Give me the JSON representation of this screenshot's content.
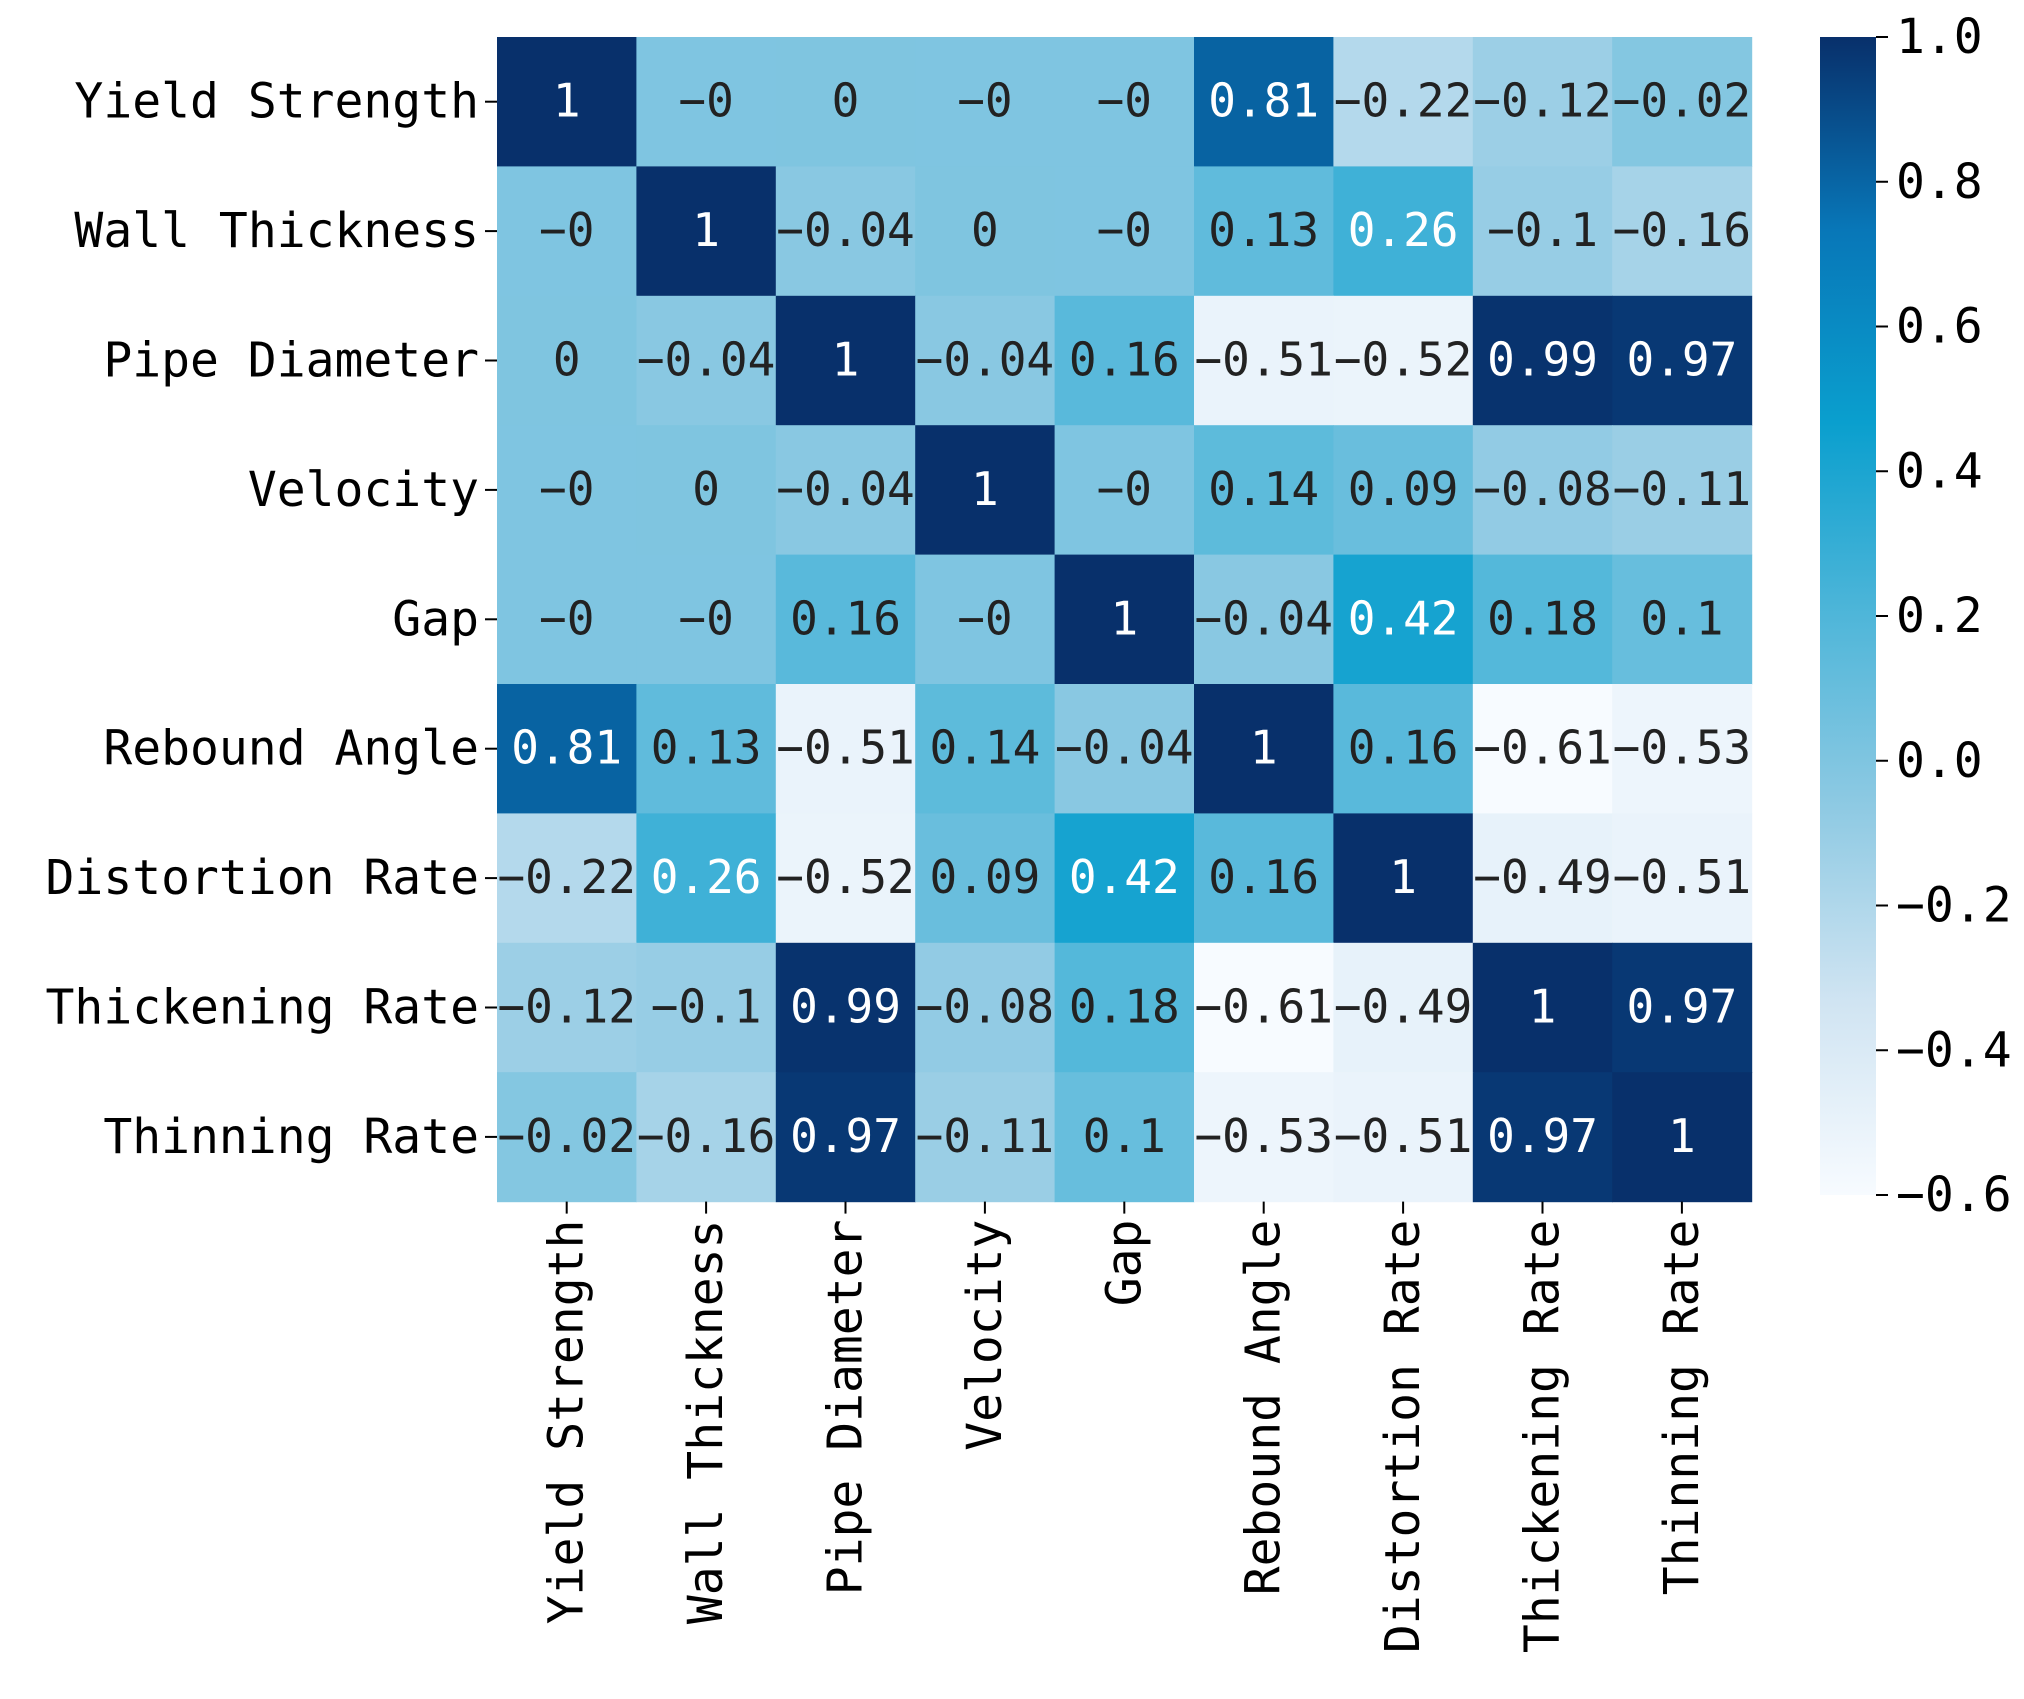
{
  "chart_data": {
    "type": "heatmap",
    "title": "",
    "xlabel": "",
    "ylabel": "",
    "row_labels": [
      "Yield Strength",
      "Wall Thickness",
      "Pipe Diameter",
      "Velocity",
      "Gap",
      "Rebound Angle",
      "Distortion Rate",
      "Thickening Rate",
      "Thinning Rate"
    ],
    "col_labels": [
      "Yield Strength",
      "Wall Thickness",
      "Pipe Diameter",
      "Velocity",
      "Gap",
      "Rebound Angle",
      "Distortion Rate",
      "Thickening Rate",
      "Thinning Rate"
    ],
    "values": [
      [
        1,
        -0.001,
        0.001,
        -0.001,
        -0.001,
        0.81,
        -0.22,
        -0.12,
        -0.02
      ],
      [
        -0.001,
        1,
        -0.04,
        0.001,
        -0.001,
        0.13,
        0.26,
        -0.1,
        -0.16
      ],
      [
        0.001,
        -0.04,
        1,
        -0.04,
        0.16,
        -0.51,
        -0.52,
        0.99,
        0.97
      ],
      [
        -0.001,
        0.001,
        -0.04,
        1,
        -0.001,
        0.14,
        0.09,
        -0.08,
        -0.11
      ],
      [
        -0.001,
        -0.001,
        0.16,
        -0.001,
        1,
        -0.04,
        0.42,
        0.18,
        0.1
      ],
      [
        0.81,
        0.13,
        -0.51,
        0.14,
        -0.04,
        1,
        0.16,
        -0.61,
        -0.53
      ],
      [
        -0.22,
        0.26,
        -0.52,
        0.09,
        0.42,
        0.16,
        1,
        -0.49,
        -0.51
      ],
      [
        -0.12,
        -0.1,
        0.99,
        -0.08,
        0.18,
        -0.61,
        -0.49,
        1,
        0.97
      ],
      [
        -0.02,
        -0.16,
        0.97,
        -0.11,
        0.1,
        -0.53,
        -0.51,
        0.97,
        1
      ]
    ],
    "annotations": [
      [
        "1",
        "−0",
        "0",
        "−0",
        "−0",
        "0.81",
        "−0.22",
        "−0.12",
        "−0.02"
      ],
      [
        "−0",
        "1",
        "−0.04",
        "0",
        "−0",
        "0.13",
        "0.26",
        "−0.1",
        "−0.16"
      ],
      [
        "0",
        "−0.04",
        "1",
        "−0.04",
        "0.16",
        "−0.51",
        "−0.52",
        "0.99",
        "0.97"
      ],
      [
        "−0",
        "0",
        "−0.04",
        "1",
        "−0",
        "0.14",
        "0.09",
        "−0.08",
        "−0.11"
      ],
      [
        "−0",
        "−0",
        "0.16",
        "−0",
        "1",
        "−0.04",
        "0.42",
        "0.18",
        "0.1"
      ],
      [
        "0.81",
        "0.13",
        "−0.51",
        "0.14",
        "−0.04",
        "1",
        "0.16",
        "−0.61",
        "−0.53"
      ],
      [
        "−0.22",
        "0.26",
        "−0.52",
        "0.09",
        "0.42",
        "0.16",
        "1",
        "−0.49",
        "−0.51"
      ],
      [
        "−0.12",
        "−0.1",
        "0.99",
        "−0.08",
        "0.18",
        "−0.61",
        "−0.49",
        "1",
        "0.97"
      ],
      [
        "−0.02",
        "−0.16",
        "0.97",
        "−0.11",
        "0.1",
        "−0.53",
        "−0.51",
        "0.97",
        "1"
      ]
    ],
    "colormap": "Blues",
    "colorbar": {
      "range": [
        -0.6,
        1.0
      ],
      "ticks": [
        1.0,
        0.8,
        0.6,
        0.4,
        0.2,
        0.0,
        -0.2,
        -0.4,
        -0.6
      ],
      "tick_labels": [
        "1.0",
        "0.8",
        "0.6",
        "0.4",
        "0.2",
        "0.0",
        "−0.2",
        "−0.4",
        "−0.6"
      ]
    },
    "colors": {
      "stops": [
        "#f7fbff",
        "#d0e4f2",
        "#8fcae3",
        "#4fb6d9",
        "#0a9fce",
        "#0877b8",
        "#08306b"
      ],
      "text_light": "#ffffff",
      "text_dark": "#222222",
      "tick": "#000000"
    }
  }
}
